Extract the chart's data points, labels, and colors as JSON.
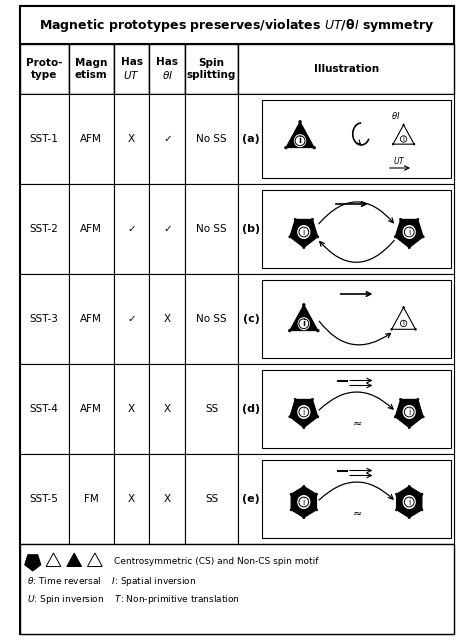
{
  "title_plain": "Magnetic prototypes preserves/violates ",
  "title_italic": "UT",
  "title_sep": "/",
  "title_italic2": "θI",
  "title_end": " symmetry",
  "col_headers": [
    "Proto-\ntype",
    "Magn\netism",
    "Has\nUT",
    "Has\nθI",
    "Spin\nsplitting",
    "Illustration"
  ],
  "rows": [
    {
      "proto": "SST-1",
      "magn": "AFM",
      "ut": "X",
      "ti": "✓",
      "ss": "No SS",
      "label": "(a)"
    },
    {
      "proto": "SST-2",
      "magn": "AFM",
      "ut": "✓",
      "ti": "✓",
      "ss": "No SS",
      "label": "(b)"
    },
    {
      "proto": "SST-3",
      "magn": "AFM",
      "ut": "✓",
      "ti": "X",
      "ss": "No SS",
      "label": "(c)"
    },
    {
      "proto": "SST-4",
      "magn": "AFM",
      "ut": "X",
      "ti": "X",
      "ss": "SS",
      "label": "(d)"
    },
    {
      "proto": "SST-5",
      "magn": "FM",
      "ut": "X",
      "ti": "X",
      "ss": "SS",
      "label": "(e)"
    }
  ],
  "background": "#ffffff"
}
